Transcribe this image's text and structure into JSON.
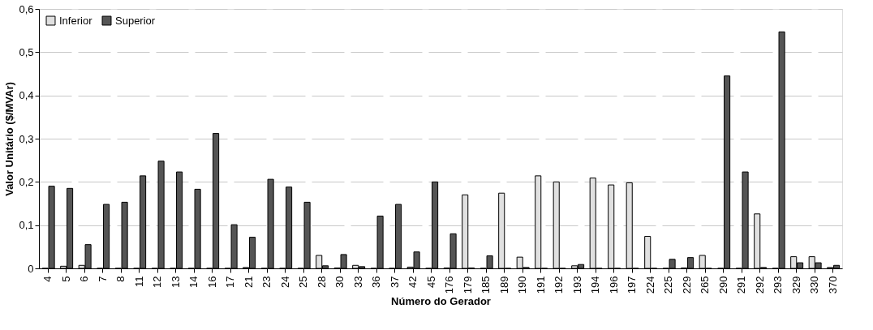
{
  "chart_data": {
    "type": "bar",
    "xlabel": "Número do Gerador",
    "ylabel": "Valor Unitário ($/MVAr)",
    "categories": [
      "4",
      "5",
      "6",
      "7",
      "8",
      "11",
      "12",
      "13",
      "14",
      "16",
      "17",
      "21",
      "23",
      "24",
      "25",
      "28",
      "30",
      "33",
      "36",
      "37",
      "42",
      "45",
      "176",
      "179",
      "185",
      "189",
      "190",
      "191",
      "192",
      "193",
      "194",
      "196",
      "197",
      "224",
      "225",
      "229",
      "265",
      "290",
      "291",
      "292",
      "293",
      "329",
      "330",
      "370"
    ],
    "series": [
      {
        "name": "Inferior",
        "color": "#e0e0e0",
        "values": [
          0,
          0.005,
          0.007,
          0,
          0,
          0,
          0,
          0,
          0,
          0,
          0,
          0.002,
          0,
          0,
          0,
          0.03,
          0.001,
          0.007,
          0,
          0,
          0.003,
          0,
          0.001,
          0.17,
          0,
          0.174,
          0.026,
          0.214,
          0.2,
          0.006,
          0.209,
          0.193,
          0.198,
          0.074,
          0,
          0.001,
          0.03,
          0,
          0,
          0.126,
          0,
          0.027,
          0.027,
          0.002
        ]
      },
      {
        "name": "Superior",
        "color": "#555555",
        "values": [
          0.19,
          0.185,
          0.055,
          0.148,
          0.153,
          0.214,
          0.248,
          0.223,
          0.183,
          0.312,
          0.101,
          0.072,
          0.206,
          0.188,
          0.153,
          0.006,
          0.032,
          0.004,
          0.121,
          0.148,
          0.038,
          0.2,
          0.08,
          0.001,
          0.029,
          0,
          0.002,
          0,
          0,
          0.009,
          0,
          0,
          0,
          0,
          0.021,
          0.025,
          0,
          0.445,
          0.223,
          0.002,
          0.547,
          0.013,
          0.013,
          0.007
        ]
      }
    ],
    "ylim": [
      0,
      0.6
    ],
    "yticks": [
      0,
      {
        "value": 0.1,
        "label": "0,1"
      },
      {
        "value": 0.2,
        "label": "0,2"
      },
      {
        "value": 0.3,
        "label": "0,3"
      },
      {
        "value": 0.4,
        "label": "0,4"
      },
      {
        "value": 0.5,
        "label": "0,5"
      },
      {
        "value": 0.6,
        "label": "0,6"
      }
    ],
    "grid": "y",
    "legend": "top left"
  }
}
